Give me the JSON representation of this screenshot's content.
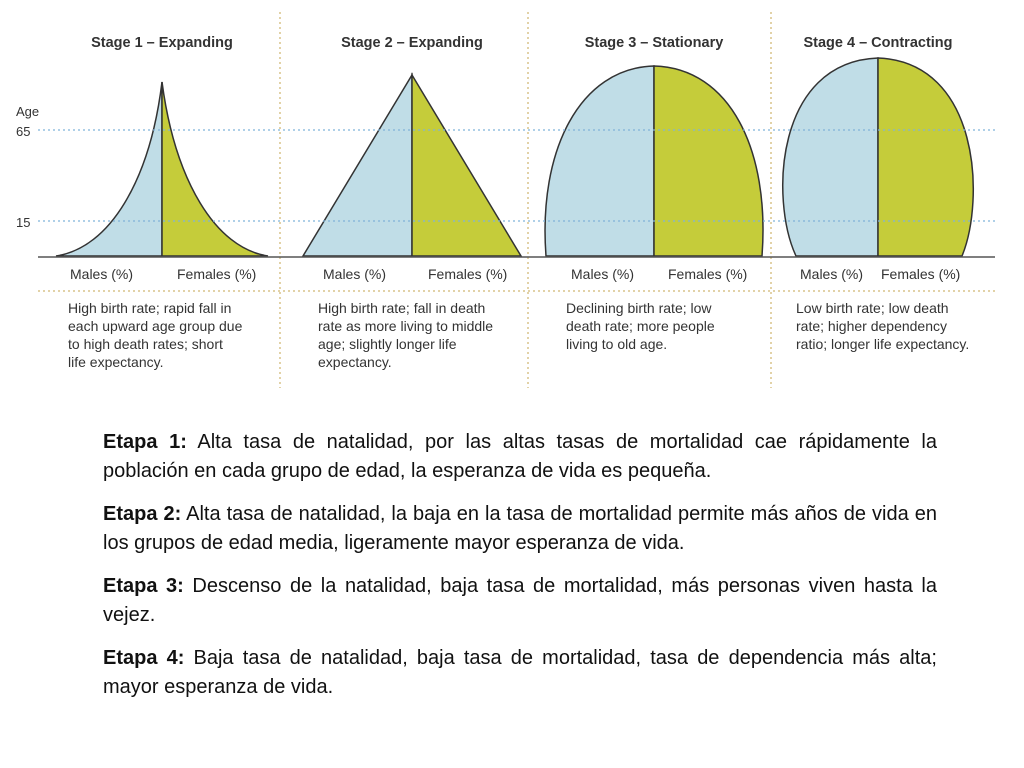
{
  "colors": {
    "males": "#c0dde7",
    "females": "#c5cc3a",
    "outline": "#333333",
    "guide": "#7fb3d9",
    "divider": "#d8c48a"
  },
  "age_axis": {
    "title": "Age",
    "ticks": [
      "65",
      "15"
    ]
  },
  "stages": [
    {
      "title": "Stage 1 – Expanding",
      "males_label": "Males (%)",
      "females_label": "Females (%)",
      "description": [
        "High birth rate; rapid fall in",
        "each upward age group due",
        "to high death rates; short",
        "life expectancy."
      ]
    },
    {
      "title": "Stage 2 – Expanding",
      "males_label": "Males (%)",
      "females_label": "Females (%)",
      "description": [
        "High birth rate; fall in death",
        "rate as more living to middle",
        "age; slightly longer life",
        "expectancy."
      ]
    },
    {
      "title": "Stage 3 – Stationary",
      "males_label": "Males (%)",
      "females_label": "Females (%)",
      "description": [
        "Declining birth rate; low",
        "death rate; more people",
        "living to old age."
      ]
    },
    {
      "title": "Stage 4 – Contracting",
      "males_label": "Males (%)",
      "females_label": "Females (%)",
      "description": [
        "Low birth rate; low death",
        "rate; higher dependency",
        "ratio; longer life expectancy."
      ]
    }
  ],
  "etapas": [
    {
      "label": "Etapa 1:",
      "text": " Alta tasa de natalidad, por las altas tasas de mortalidad cae rápidamente la población en cada grupo de edad, la esperanza de vida es pequeña."
    },
    {
      "label": "Etapa 2:",
      "text": " Alta tasa de natalidad, la baja en la tasa de mortalidad permite más años de vida en los grupos de edad media, ligeramente mayor esperanza de vida."
    },
    {
      "label": "Etapa 3:",
      "text": " Descenso de la natalidad, baja tasa de mortalidad, más personas viven hasta la vejez."
    },
    {
      "label": "Etapa 4:",
      "text": " Baja tasa de natalidad, baja tasa de mortalidad, tasa de dependencia más alta; mayor esperanza de vida."
    }
  ]
}
